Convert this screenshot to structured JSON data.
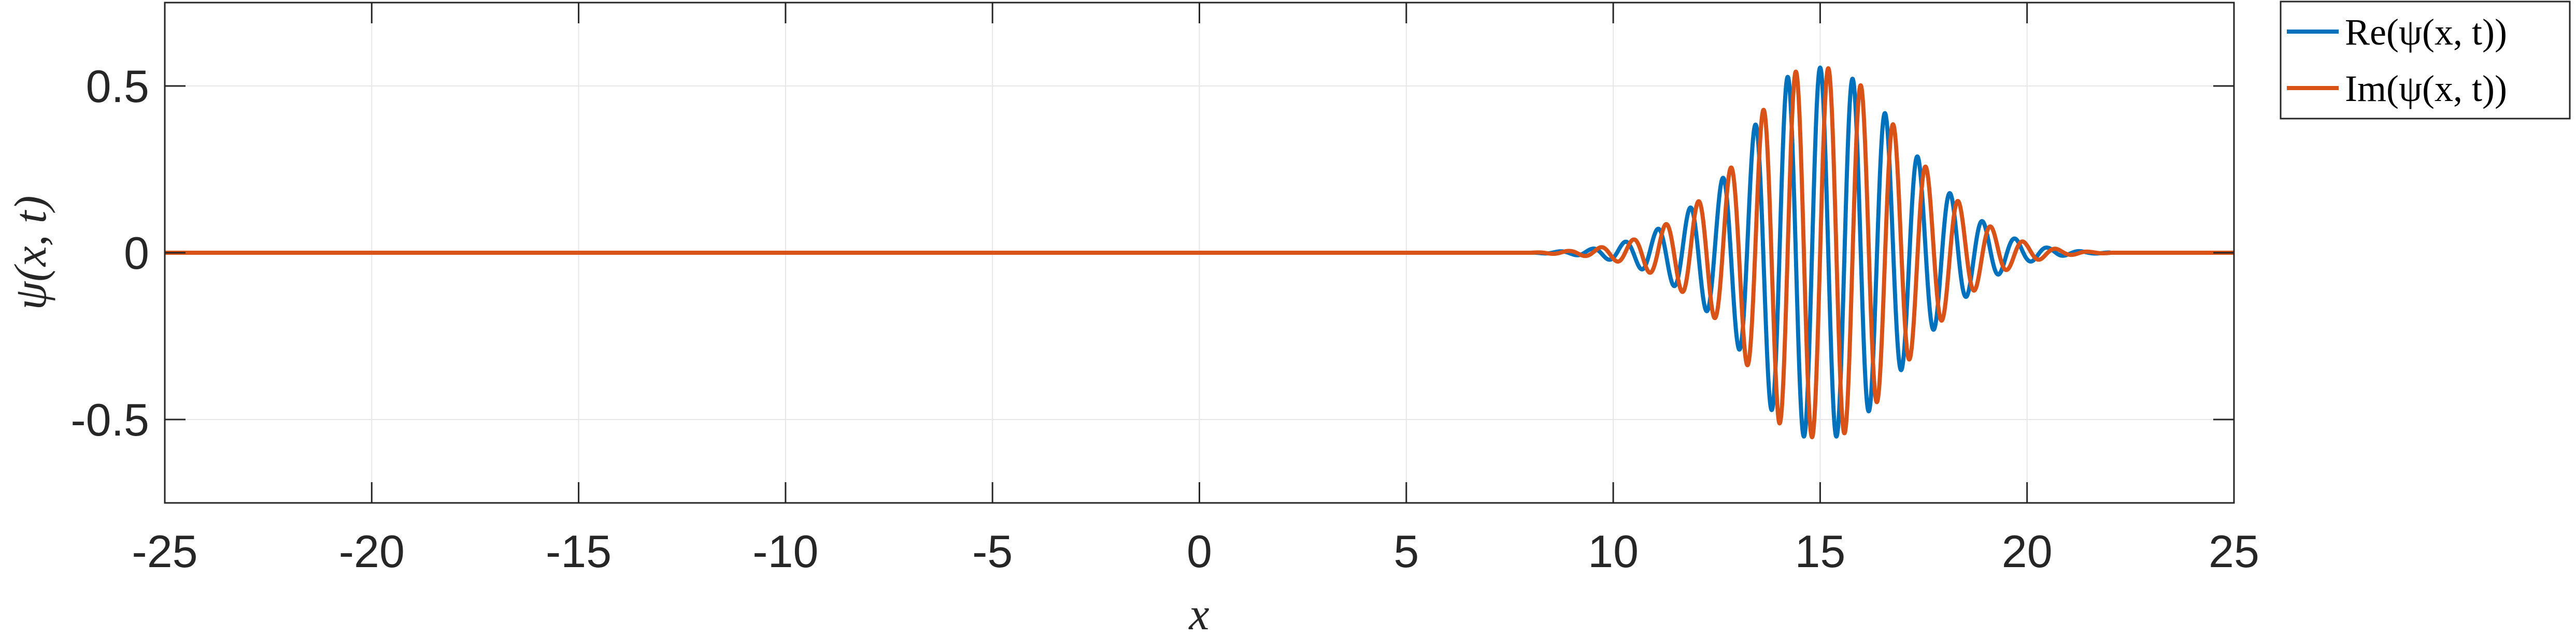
{
  "chart_data": {
    "type": "line",
    "xlabel": "x",
    "ylabel": "ψ(x, t)",
    "xlim": [
      -25,
      25
    ],
    "ylim": [
      -0.75,
      0.75
    ],
    "xticks": [
      -25,
      -20,
      -15,
      -10,
      -5,
      0,
      5,
      10,
      15,
      20,
      25
    ],
    "xtick_labels": [
      "-25",
      "-20",
      "-15",
      "-10",
      "-5",
      "0",
      "5",
      "10",
      "15",
      "20",
      "25"
    ],
    "yticks": [
      -0.5,
      0,
      0.5
    ],
    "ytick_labels": [
      "-0.5",
      "0",
      "0.5"
    ],
    "grid": true,
    "legend_position": "outside top-right",
    "series": [
      {
        "name": "Re(ψ(x, t))",
        "color": "#0072BD",
        "x": [
          8,
          8.5,
          9,
          9.5,
          10,
          10.5,
          11,
          11.5,
          12,
          12.5,
          13,
          13.5,
          14,
          14.5,
          15,
          15.5,
          16,
          16.5,
          17,
          17.5,
          18,
          18.5,
          19,
          19.5,
          20,
          20.5,
          21,
          21.5,
          22
        ],
        "y": [
          0.0,
          0.003,
          0.006,
          0.012,
          0.023,
          0.04,
          0.066,
          0.102,
          0.148,
          0.201,
          0.28,
          0.4,
          0.51,
          0.55,
          0.555,
          0.55,
          0.5,
          0.43,
          0.345,
          0.265,
          0.195,
          0.135,
          0.087,
          0.052,
          0.029,
          0.015,
          0.007,
          0.003,
          0.001
        ],
        "envelope_note": "oscillating wave packet; values give the envelope amplitude",
        "wavenumber": 8.0
      },
      {
        "name": "Im(ψ(x, t))",
        "color": "#D95319",
        "x": [
          8,
          8.5,
          9,
          9.5,
          10,
          10.5,
          11,
          11.5,
          12,
          12.5,
          13,
          13.5,
          14,
          14.5,
          15,
          15.5,
          16,
          16.5,
          17,
          17.5,
          18,
          18.5,
          19,
          19.5,
          20,
          20.5,
          21,
          21.5,
          22
        ],
        "y": [
          0.0,
          0.003,
          0.006,
          0.012,
          0.023,
          0.04,
          0.066,
          0.102,
          0.148,
          0.201,
          0.28,
          0.4,
          0.51,
          0.55,
          0.555,
          0.55,
          0.5,
          0.43,
          0.345,
          0.265,
          0.195,
          0.135,
          0.087,
          0.052,
          0.029,
          0.015,
          0.007,
          0.003,
          0.001
        ],
        "envelope_note": "oscillating wave packet; values give the envelope amplitude",
        "wavenumber": 8.0
      }
    ]
  }
}
